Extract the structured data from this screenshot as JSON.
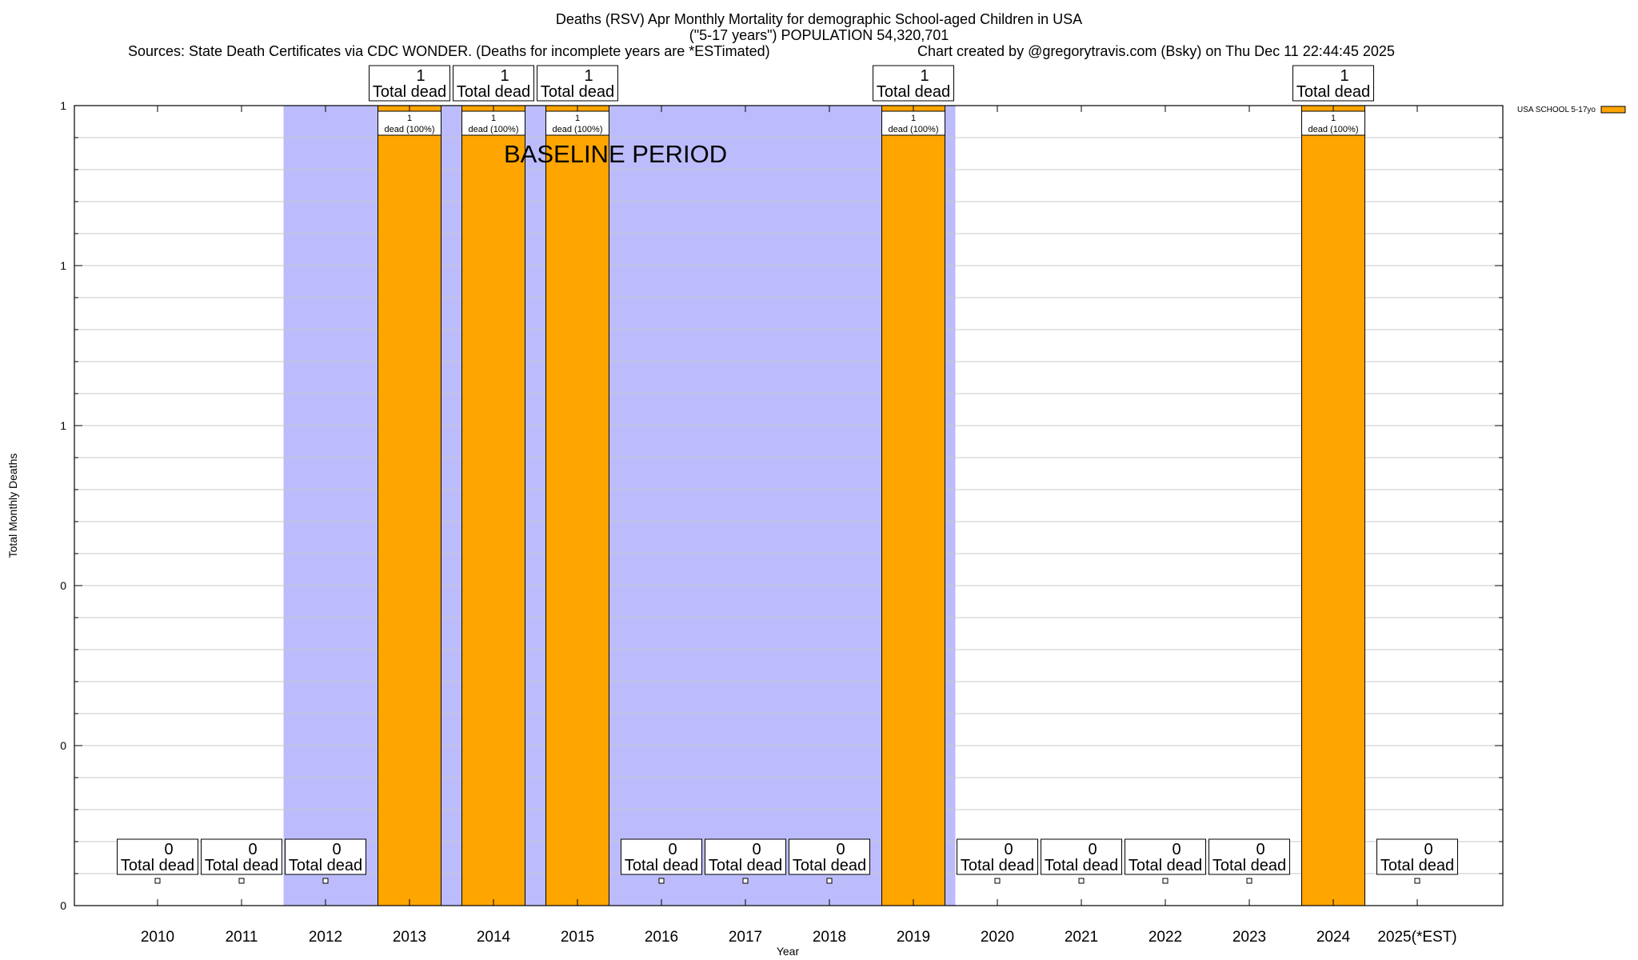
{
  "chart_data": {
    "type": "bar",
    "title": "Deaths (RSV) Apr Monthly Mortality for demographic School-aged Children in USA",
    "subtitle": "(\"5-17 years\") POPULATION 54,320,701",
    "sources": "Sources: State Death Certificates via CDC WONDER. (Deaths for incomplete years are *ESTimated)",
    "credit": "Chart created by @gregorytravis.com (Bsky) on Thu Dec 11 22:44:45 2025",
    "xlabel": "Year",
    "ylabel": "Total Monthly Deaths",
    "ylim": [
      0,
      1
    ],
    "y_tick_labels": [
      "0",
      "0",
      "0",
      "1",
      "1",
      "1"
    ],
    "grid": true,
    "legend_position": "top-right",
    "categories": [
      "2010",
      "2011",
      "2012",
      "2013",
      "2014",
      "2015",
      "2016",
      "2017",
      "2018",
      "2019",
      "2020",
      "2021",
      "2022",
      "2023",
      "2024",
      "2025(*EST)"
    ],
    "series": [
      {
        "name": "USA SCHOOL 5-17yo",
        "color": "#ffa500",
        "values": [
          0,
          0,
          0,
          1,
          1,
          1,
          0,
          0,
          0,
          1,
          0,
          0,
          0,
          0,
          1,
          0
        ]
      }
    ],
    "total_label_word": "Total dead",
    "bar_label_word": "dead (100%)",
    "baseline": {
      "label": "BASELINE PERIOD",
      "start_category": "2012",
      "end_category": "2019",
      "color": "#bcbcfc"
    }
  }
}
